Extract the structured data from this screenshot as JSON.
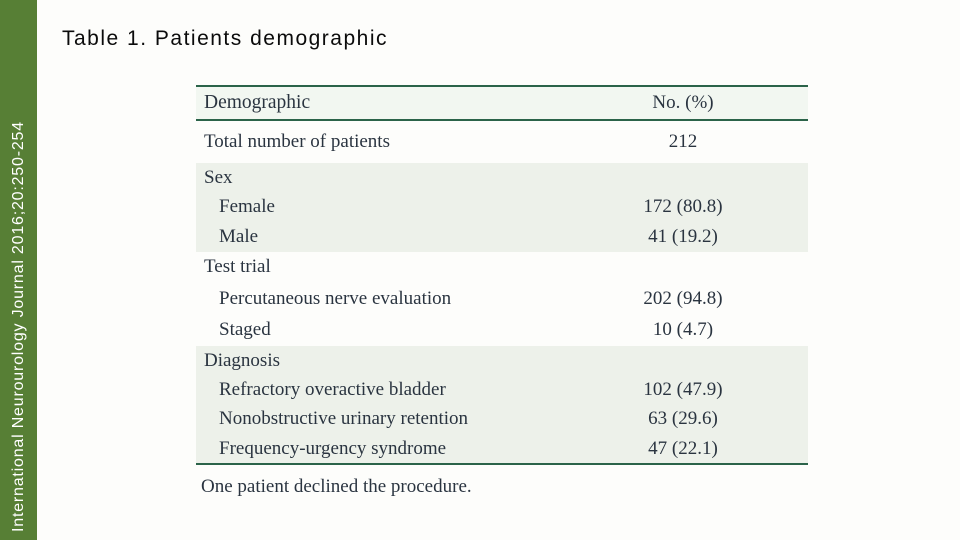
{
  "sidebar": {
    "citation": "International Neurourology Journal 2016;20:250-254"
  },
  "title": "Table 1. Patients demographic",
  "colors": {
    "sidebar_green": "#577f35",
    "table_line_green": "#2b6349",
    "table_header_bg": "#f2f7f1",
    "table_shade_bg": "#edf1ea",
    "text_ink": "#2a3440"
  },
  "table": {
    "header": {
      "col1": "Demographic",
      "col2": "No. (%)"
    },
    "blocks": [
      {
        "shaded": false,
        "rows": [
          {
            "label": "Total number of patients",
            "value": "212",
            "indent": false
          }
        ]
      },
      {
        "shaded": true,
        "rows": [
          {
            "label": "Sex",
            "value": "",
            "indent": false
          },
          {
            "label": "Female",
            "value": "172 (80.8)",
            "indent": true
          },
          {
            "label": "Male",
            "value": "41 (19.2)",
            "indent": true
          }
        ]
      },
      {
        "shaded": false,
        "rows": [
          {
            "label": "Test trial",
            "value": "",
            "indent": false
          },
          {
            "label": "Percutaneous nerve evaluation",
            "value": "202 (94.8)",
            "indent": true
          },
          {
            "label": "Staged",
            "value": "10 (4.7)",
            "indent": true
          }
        ]
      },
      {
        "shaded": true,
        "rows": [
          {
            "label": "Diagnosis",
            "value": "",
            "indent": false
          },
          {
            "label": "Refractory overactive bladder",
            "value": "102 (47.9)",
            "indent": true
          },
          {
            "label": "Nonobstructive urinary retention",
            "value": "63 (29.6)",
            "indent": true
          },
          {
            "label": "Frequency-urgency syndrome",
            "value": "47 (22.1)",
            "indent": true
          }
        ]
      }
    ],
    "footnote": "One patient declined the procedure."
  }
}
